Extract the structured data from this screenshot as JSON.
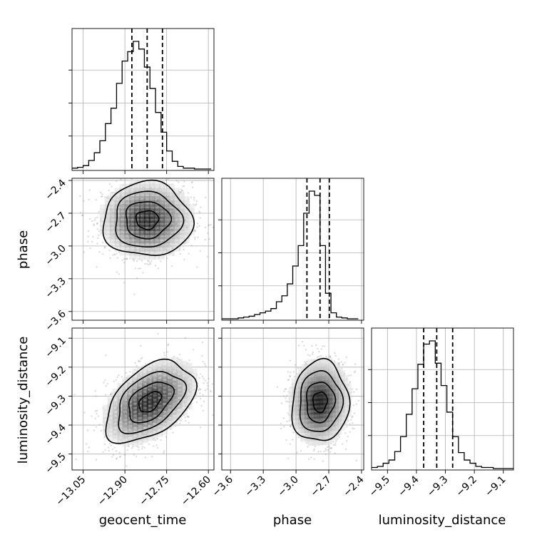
{
  "chart_data": {
    "type": "corner",
    "parameters": [
      "geocent_time",
      "phase",
      "luminosity_distance"
    ],
    "axis_labels": {
      "geocent_time": "geocent_time",
      "phase": "phase",
      "luminosity_distance": "luminosity_distance"
    },
    "ranges": {
      "geocent_time": [
        -13.09,
        -12.58
      ],
      "phase": [
        -3.68,
        -2.38
      ],
      "luminosity_distance": [
        -9.555,
        -9.065
      ]
    },
    "ticks": {
      "geocent_time": {
        "values": [
          -13.05,
          -12.9,
          -12.75,
          -12.6
        ],
        "labels": [
          "−13.05",
          "−12.90",
          "−12.75",
          "−12.60"
        ]
      },
      "phase": {
        "values": [
          -3.6,
          -3.3,
          -3.0,
          -2.7,
          -2.4
        ],
        "labels": [
          "−3.6",
          "−3.3",
          "−3.0",
          "−2.7",
          "−2.4"
        ]
      },
      "luminosity_distance": {
        "values": [
          -9.5,
          -9.4,
          -9.3,
          -9.2,
          -9.1
        ],
        "labels": [
          "−9.5",
          "−9.4",
          "−9.3",
          "−9.2",
          "−9.1"
        ]
      }
    },
    "marginals": {
      "geocent_time": {
        "bins": [
          -13.09,
          -13.07,
          -13.05,
          -13.03,
          -13.01,
          -12.99,
          -12.97,
          -12.95,
          -12.93,
          -12.91,
          -12.89,
          -12.87,
          -12.85,
          -12.83,
          -12.81,
          -12.79,
          -12.77,
          -12.75,
          -12.73,
          -12.71,
          -12.69,
          -12.67,
          -12.65,
          -12.63,
          -12.61,
          -12.59
        ],
        "counts": [
          1,
          2,
          4,
          10,
          19,
          33,
          53,
          71,
          100,
          126,
          137,
          149,
          140,
          119,
          94,
          66,
          43,
          21,
          9,
          3,
          1,
          1,
          0,
          0,
          0
        ],
        "quantiles": [
          -12.875,
          -12.82,
          -12.765
        ]
      },
      "phase": {
        "bins": [
          -3.68,
          -3.63,
          -3.58,
          -3.53,
          -3.48,
          -3.43,
          -3.38,
          -3.33,
          -3.28,
          -3.23,
          -3.18,
          -3.13,
          -3.08,
          -3.03,
          -2.98,
          -2.93,
          -2.88,
          -2.83,
          -2.78,
          -2.73,
          -2.68,
          -2.63,
          -2.58,
          -2.53,
          -2.48,
          -2.43
        ],
        "counts": [
          0,
          0,
          0,
          1,
          2,
          3,
          5,
          7,
          9,
          12,
          20,
          27,
          41,
          62,
          86,
          124,
          150,
          145,
          86,
          30,
          7,
          2,
          1,
          0,
          0
        ],
        "quantiles": [
          -2.9,
          -2.78,
          -2.695
        ]
      },
      "luminosity_distance": {
        "bins": [
          -9.555,
          -9.535,
          -9.515,
          -9.495,
          -9.475,
          -9.455,
          -9.435,
          -9.415,
          -9.395,
          -9.375,
          -9.355,
          -9.335,
          -9.315,
          -9.295,
          -9.275,
          -9.255,
          -9.235,
          -9.215,
          -9.195,
          -9.175,
          -9.155,
          -9.135,
          -9.115,
          -9.095,
          -9.075,
          -9.065
        ],
        "counts": [
          1,
          2,
          5,
          8,
          16,
          30,
          51,
          75,
          98,
          117,
          120,
          99,
          78,
          53,
          30,
          15,
          8,
          5,
          2,
          1,
          1,
          0,
          0,
          0,
          0
        ],
        "quantiles": [
          -9.375,
          -9.33,
          -9.275
        ]
      }
    },
    "joint": [
      {
        "x": "geocent_time",
        "y": "phase",
        "mean": [
          -12.82,
          -2.76
        ],
        "std": [
          0.08,
          0.17
        ],
        "corr": 0.0
      },
      {
        "x": "geocent_time",
        "y": "luminosity_distance",
        "mean": [
          -12.81,
          -9.32
        ],
        "std": [
          0.08,
          0.07
        ],
        "corr": 0.45
      },
      {
        "x": "phase",
        "y": "luminosity_distance",
        "mean": [
          -2.78,
          -9.32
        ],
        "std": [
          0.13,
          0.07
        ],
        "corr": 0.05
      }
    ],
    "contour_levels": [
      0.5,
      1.0,
      1.5,
      2.0
    ],
    "grid": true
  }
}
